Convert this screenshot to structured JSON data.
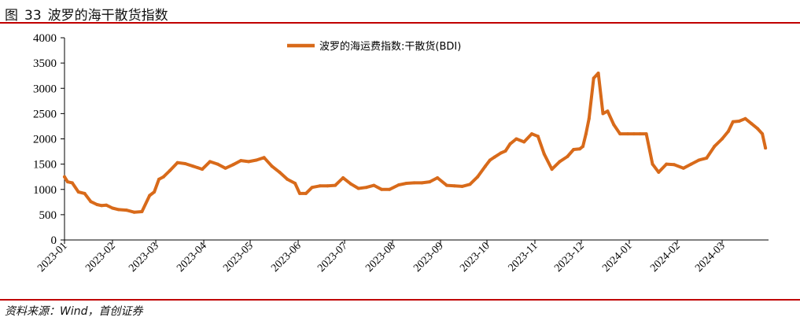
{
  "figure": {
    "label": "图",
    "number": "33",
    "title": "波罗的海干散货指数"
  },
  "source": "资料来源：Wind，首创证券",
  "chart_data": {
    "type": "line",
    "title": "",
    "xlabel": "",
    "ylabel": "",
    "ylim": [
      0,
      4000
    ],
    "yticks": [
      "0",
      "500",
      "1000",
      "1500",
      "2000",
      "2500",
      "3000",
      "3500",
      "4000"
    ],
    "xticks": [
      "2023-01",
      "2023-02",
      "2023-03",
      "2023-04",
      "2023-05",
      "2023-06",
      "2023-07",
      "2023-08",
      "2023-09",
      "2023-10",
      "2023-11",
      "2023-12",
      "2024-01",
      "2024-02",
      "2024-03"
    ],
    "xlim": [
      "2023-01-01",
      "2024-03-31"
    ],
    "legend_position": "top-center",
    "grid": false,
    "line_color": "#D86A1A",
    "series": [
      {
        "name": "波罗的海运费指数:干散货(BDI)",
        "x": [
          "2023-01-01",
          "2023-01-03",
          "2023-01-06",
          "2023-01-10",
          "2023-01-14",
          "2023-01-18",
          "2023-01-22",
          "2023-01-25",
          "2023-01-28",
          "2023-02-01",
          "2023-02-05",
          "2023-02-10",
          "2023-02-15",
          "2023-02-20",
          "2023-02-25",
          "2023-02-28",
          "2023-03-03",
          "2023-03-06",
          "2023-03-10",
          "2023-03-15",
          "2023-03-20",
          "2023-03-25",
          "2023-03-28",
          "2023-03-31",
          "2023-04-05",
          "2023-04-10",
          "2023-04-15",
          "2023-04-20",
          "2023-04-25",
          "2023-04-30",
          "2023-05-05",
          "2023-05-10",
          "2023-05-15",
          "2023-05-20",
          "2023-05-25",
          "2023-05-30",
          "2023-06-02",
          "2023-06-06",
          "2023-06-10",
          "2023-06-15",
          "2023-06-20",
          "2023-06-25",
          "2023-06-30",
          "2023-07-05",
          "2023-07-10",
          "2023-07-15",
          "2023-07-20",
          "2023-07-25",
          "2023-07-30",
          "2023-08-05",
          "2023-08-10",
          "2023-08-15",
          "2023-08-20",
          "2023-08-25",
          "2023-08-30",
          "2023-09-05",
          "2023-09-10",
          "2023-09-15",
          "2023-09-20",
          "2023-09-25",
          "2023-09-30",
          "2023-10-03",
          "2023-10-06",
          "2023-10-10",
          "2023-10-13",
          "2023-10-16",
          "2023-10-20",
          "2023-10-25",
          "2023-10-30",
          "2023-11-03",
          "2023-11-07",
          "2023-11-12",
          "2023-11-17",
          "2023-11-22",
          "2023-11-26",
          "2023-11-30",
          "2023-12-02",
          "2023-12-04",
          "2023-12-06",
          "2023-12-09",
          "2023-12-12",
          "2023-12-15",
          "2023-12-18",
          "2023-12-22",
          "2023-12-26",
          "2023-12-31",
          "2024-01-04",
          "2024-01-08",
          "2024-01-12",
          "2024-01-16",
          "2024-01-20",
          "2024-01-25",
          "2024-01-30",
          "2024-02-05",
          "2024-02-10",
          "2024-02-15",
          "2024-02-20",
          "2024-02-25",
          "2024-03-01",
          "2024-03-05",
          "2024-03-08",
          "2024-03-12",
          "2024-03-16",
          "2024-03-20",
          "2024-03-24",
          "2024-03-27",
          "2024-03-29"
        ],
        "values": [
          1250,
          1150,
          1130,
          950,
          920,
          760,
          700,
          680,
          690,
          630,
          600,
          590,
          550,
          560,
          880,
          950,
          1200,
          1250,
          1370,
          1530,
          1510,
          1460,
          1430,
          1400,
          1550,
          1500,
          1420,
          1490,
          1570,
          1550,
          1580,
          1630,
          1460,
          1340,
          1200,
          1120,
          920,
          920,
          1040,
          1070,
          1070,
          1080,
          1230,
          1110,
          1020,
          1040,
          1080,
          1000,
          1000,
          1090,
          1120,
          1130,
          1130,
          1150,
          1230,
          1080,
          1070,
          1060,
          1100,
          1250,
          1460,
          1580,
          1640,
          1720,
          1760,
          1900,
          2000,
          1940,
          2100,
          2050,
          1700,
          1400,
          1550,
          1650,
          1790,
          1800,
          1850,
          2100,
          2400,
          3200,
          3300,
          2500,
          2550,
          2280,
          2100,
          2100,
          2100,
          2100,
          2100,
          1500,
          1340,
          1500,
          1490,
          1420,
          1500,
          1580,
          1620,
          1850,
          2000,
          2150,
          2340,
          2350,
          2400,
          2300,
          2200,
          2100,
          1820
        ]
      }
    ]
  }
}
